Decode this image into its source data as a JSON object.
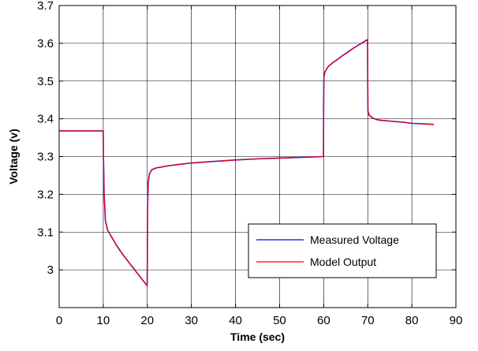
{
  "chart_data": {
    "type": "line",
    "xlabel": "Time (sec)",
    "ylabel": "Voltage (v)",
    "xlim": [
      0,
      90
    ],
    "ylim": [
      2.9,
      3.7
    ],
    "xticks": [
      0,
      10,
      20,
      30,
      40,
      50,
      60,
      70,
      80,
      90
    ],
    "xtick_labels": [
      "0",
      "10",
      "20",
      "30",
      "40",
      "50",
      "60",
      "70",
      "80",
      "90"
    ],
    "yticks": [
      3.0,
      3.1,
      3.2,
      3.3,
      3.4,
      3.5,
      3.6,
      3.7
    ],
    "ytick_labels": [
      "3",
      "3.1",
      "3.2",
      "3.3",
      "3.4",
      "3.5",
      "3.6",
      "3.7"
    ],
    "grid": true,
    "legend_position": "bottom-right",
    "series": [
      {
        "name": "Measured Voltage",
        "color": "#0000ff",
        "x": [
          0,
          10,
          10.05,
          10.2,
          10.5,
          11,
          12,
          13,
          14,
          15,
          16,
          17,
          18,
          19,
          19.95,
          20,
          20.05,
          20.2,
          20.5,
          21,
          22,
          23,
          25,
          27,
          30,
          35,
          40,
          45,
          50,
          55,
          59.95,
          60,
          60.05,
          60.3,
          61,
          62,
          63,
          64,
          65,
          66,
          67,
          68,
          69,
          69.95,
          70,
          70.05,
          70.3,
          71,
          72,
          73,
          75,
          78,
          80,
          82,
          85
        ],
        "y": [
          3.368,
          3.368,
          3.3,
          3.2,
          3.13,
          3.105,
          3.085,
          3.065,
          3.048,
          3.032,
          3.017,
          3.002,
          2.987,
          2.972,
          2.958,
          3.02,
          3.16,
          3.23,
          3.255,
          3.265,
          3.27,
          3.272,
          3.276,
          3.279,
          3.283,
          3.287,
          3.291,
          3.294,
          3.296,
          3.298,
          3.3,
          3.43,
          3.51,
          3.525,
          3.538,
          3.548,
          3.556,
          3.565,
          3.573,
          3.581,
          3.589,
          3.596,
          3.603,
          3.61,
          3.5,
          3.42,
          3.41,
          3.403,
          3.398,
          3.396,
          3.394,
          3.391,
          3.388,
          3.387,
          3.385
        ]
      },
      {
        "name": "Model Output",
        "color": "#ff0000",
        "x": [
          0,
          10,
          10.05,
          10.2,
          10.5,
          11,
          12,
          13,
          14,
          15,
          16,
          17,
          18,
          19,
          19.95,
          20,
          20.05,
          20.2,
          20.5,
          21,
          22,
          23,
          25,
          27,
          30,
          35,
          40,
          45,
          50,
          55,
          59.95,
          60,
          60.05,
          60.3,
          61,
          62,
          63,
          64,
          65,
          66,
          67,
          68,
          69,
          69.95,
          70,
          70.05,
          70.3,
          71,
          72,
          73,
          75,
          78,
          80,
          82,
          85
        ],
        "y": [
          3.368,
          3.368,
          3.3,
          3.2,
          3.13,
          3.105,
          3.085,
          3.065,
          3.048,
          3.032,
          3.017,
          3.002,
          2.987,
          2.972,
          2.958,
          3.02,
          3.16,
          3.23,
          3.255,
          3.265,
          3.27,
          3.272,
          3.276,
          3.279,
          3.283,
          3.287,
          3.291,
          3.294,
          3.296,
          3.298,
          3.3,
          3.43,
          3.51,
          3.525,
          3.538,
          3.548,
          3.556,
          3.565,
          3.573,
          3.581,
          3.589,
          3.596,
          3.603,
          3.61,
          3.5,
          3.42,
          3.41,
          3.403,
          3.398,
          3.396,
          3.394,
          3.391,
          3.388,
          3.387,
          3.385
        ]
      }
    ]
  }
}
